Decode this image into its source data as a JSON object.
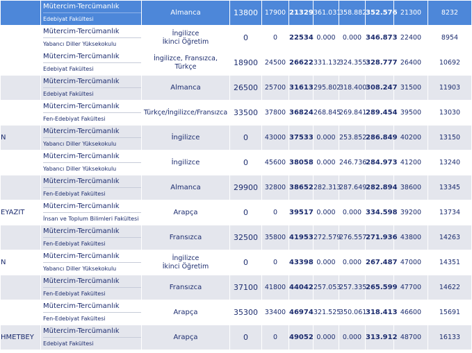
{
  "rows": [
    {
      "uni": "",
      "program": "Mütercim-Tercümanlık",
      "faculty": "Edebiyat Fakültesi",
      "lang": "Almanca",
      "quota": "13800",
      "c1": "17900",
      "score": "21329",
      "v1": "361.031",
      "v2": "358.882",
      "v3": "352.576",
      "c2": "21300",
      "c3": "8232",
      "style": "hl"
    },
    {
      "uni": "",
      "program": "Mütercim-Tercümanlık",
      "faculty": "Yabancı Diller Yüksekokulu",
      "lang": "İngilizce\nİkinci Öğretim",
      "quota": "0",
      "c1": "0",
      "score": "22534",
      "v1": "0.000",
      "v2": "0.000",
      "v3": "346.873",
      "c2": "22400",
      "c3": "8954",
      "style": "row"
    },
    {
      "uni": "",
      "program": "Mütercim-Tercümanlık",
      "faculty": "Edebiyat Fakültesi",
      "lang": "İngilizce, Fransızca, Türkçe",
      "quota": "18900",
      "c1": "24500",
      "score": "26622",
      "v1": "331.132",
      "v2": "324.355",
      "v3": "328.777",
      "c2": "26400",
      "c3": "10692",
      "style": "row"
    },
    {
      "uni": "",
      "program": "Mütercim-Tercümanlık",
      "faculty": "Edebiyat Fakültesi",
      "lang": "Almanca",
      "quota": "26500",
      "c1": "25700",
      "score": "31613",
      "v1": "295.802",
      "v2": "318.400",
      "v3": "308.247",
      "c2": "31500",
      "c3": "11903",
      "style": "alt"
    },
    {
      "uni": "",
      "program": "Mütercim-Tercümanlık",
      "faculty": "Fen-Edebiyat Fakültesi",
      "lang": "Türkçe/İngilizce/Fransızca",
      "quota": "33500",
      "c1": "37800",
      "score": "36824",
      "v1": "268.845",
      "v2": "269.841",
      "v3": "289.454",
      "c2": "39500",
      "c3": "13030",
      "style": "row"
    },
    {
      "uni": "N",
      "program": "Mütercim-Tercümanlık",
      "faculty": "Yabancı Diller Yüksekokulu",
      "lang": "İngilizce",
      "quota": "0",
      "c1": "43000",
      "score": "37533",
      "v1": "0.000",
      "v2": "253.852",
      "v3": "286.849",
      "c2": "40200",
      "c3": "13150",
      "style": "alt"
    },
    {
      "uni": "",
      "program": "Mütercim-Tercümanlık",
      "faculty": "Yabancı Diller Yüksekokulu",
      "lang": "İngilizce",
      "quota": "0",
      "c1": "45600",
      "score": "38058",
      "v1": "0.000",
      "v2": "246.736",
      "v3": "284.973",
      "c2": "41200",
      "c3": "13240",
      "style": "row"
    },
    {
      "uni": "",
      "program": "Mütercim-Tercümanlık",
      "faculty": "Fen-Edebiyat Fakültesi",
      "lang": "Almanca",
      "quota": "29900",
      "c1": "32800",
      "score": "38652",
      "v1": "282.313",
      "v2": "287.649",
      "v3": "282.894",
      "c2": "38600",
      "c3": "13345",
      "style": "alt"
    },
    {
      "uni": "EYAZIT",
      "program": "Mütercim-Tercümanlık",
      "faculty": "İnsan ve Toplum Bilimleri Fakültesi",
      "lang": "Arapça",
      "quota": "0",
      "c1": "0",
      "score": "39517",
      "v1": "0.000",
      "v2": "0.000",
      "v3": "334.598",
      "c2": "39200",
      "c3": "13734",
      "style": "row"
    },
    {
      "uni": "",
      "program": "Mütercim-Tercümanlık",
      "faculty": "Fen-Edebiyat Fakültesi",
      "lang": "Fransızca",
      "quota": "32500",
      "c1": "35800",
      "score": "41953",
      "v1": "272.579",
      "v2": "276.557",
      "v3": "271.936",
      "c2": "43800",
      "c3": "14263",
      "style": "alt"
    },
    {
      "uni": "N",
      "program": "Mütercim-Tercümanlık",
      "faculty": "Yabancı Diller Yüksekokulu",
      "lang": "İngilizce\nİkinci Öğretim",
      "quota": "0",
      "c1": "0",
      "score": "43398",
      "v1": "0.000",
      "v2": "0.000",
      "v3": "267.487",
      "c2": "47000",
      "c3": "14351",
      "style": "row"
    },
    {
      "uni": "",
      "program": "Mütercim-Tercümanlık",
      "faculty": "Fen-Edebiyat Fakültesi",
      "lang": "Fransızca",
      "quota": "37100",
      "c1": "41800",
      "score": "44042",
      "v1": "257.053",
      "v2": "257.335",
      "v3": "265.599",
      "c2": "47700",
      "c3": "14622",
      "style": "alt"
    },
    {
      "uni": "",
      "program": "Mütercim-Tercümanlık",
      "faculty": "Fen-Edebiyat Fakültesi",
      "lang": "Arapça",
      "quota": "35300",
      "c1": "33400",
      "score": "46974",
      "v1": "321.525",
      "v2": "350.061",
      "v3": "318.413",
      "c2": "46600",
      "c3": "15691",
      "style": "row"
    },
    {
      "uni": "HMETBEY",
      "program": "Mütercim-Tercümanlık",
      "faculty": "Edebiyat Fakültesi",
      "lang": "Arapça",
      "quota": "0",
      "c1": "0",
      "score": "49052",
      "v1": "0.000",
      "v2": "0.000",
      "v3": "313.912",
      "c2": "48700",
      "c3": "16133",
      "style": "alt"
    }
  ]
}
